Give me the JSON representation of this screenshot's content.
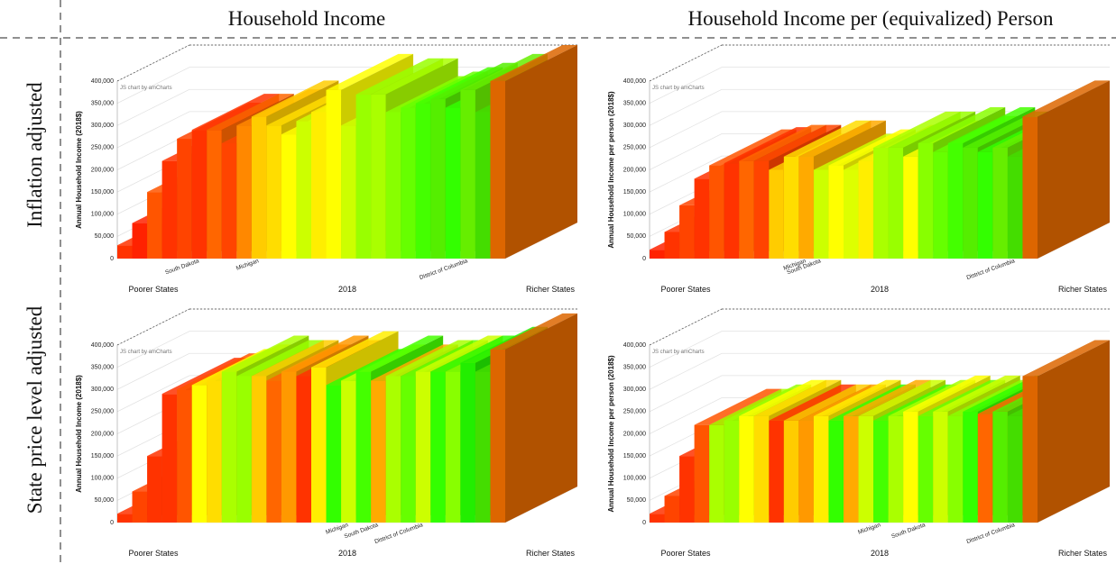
{
  "column_titles": [
    "Household Income",
    "Household Income per (equivalized) Person"
  ],
  "row_titles": [
    "Inflation adjusted",
    "State price level adjusted"
  ],
  "chart_data": [
    {
      "type": "bar3d",
      "credit": "JS chart by amCharts",
      "ylabel": "Annual Household Income (2018$)",
      "x_labels": [
        "Poorer States",
        "2018",
        "Richer States"
      ],
      "ylim": [
        0,
        400000
      ],
      "yticks": [
        0,
        {
          "value": 50000,
          "label": "50,000"
        },
        {
          "value": 100000,
          "label": "100,000"
        },
        {
          "value": 150000,
          "label": "150,000"
        },
        {
          "value": 200000,
          "label": "200,000"
        },
        {
          "value": 250000,
          "label": "250,000"
        },
        {
          "value": 300000,
          "label": "300,000"
        },
        {
          "value": 350000,
          "label": "350,000"
        },
        {
          "value": 400000,
          "label": "400,000"
        }
      ],
      "categories": [
        null,
        null,
        null,
        null,
        null,
        "South Dakota",
        null,
        null,
        null,
        "Michigan",
        null,
        null,
        null,
        null,
        null,
        null,
        null,
        null,
        null,
        null,
        null,
        null,
        null,
        "District of Columbia",
        null,
        null
      ],
      "values": [
        30000,
        80000,
        150000,
        220000,
        270000,
        290000,
        290000,
        260000,
        300000,
        320000,
        300000,
        280000,
        310000,
        330000,
        380000,
        300000,
        370000,
        370000,
        330000,
        340000,
        350000,
        360000,
        340000,
        380000,
        330000,
        400000
      ],
      "colors": [
        "#ff3300",
        "#ff2200",
        "#ff5500",
        "#ff3300",
        "#ff4400",
        "#ff3300",
        "#ff6600",
        "#ff4400",
        "#ff8800",
        "#ffcc00",
        "#ffdd00",
        "#ffff00",
        "#ccff00",
        "#ffee00",
        "#ffff00",
        "#ccff00",
        "#99ff00",
        "#aaff00",
        "#88ff00",
        "#66ff00",
        "#44ff00",
        "#55ee00",
        "#33ff00",
        "#66ee00",
        "#44dd00",
        "#dd6600"
      ]
    },
    {
      "type": "bar3d",
      "credit": "JS chart by amCharts",
      "ylabel": "Annual Household Income per person (2018$)",
      "x_labels": [
        "Poorer States",
        "2018",
        "Richer States"
      ],
      "ylim": [
        0,
        400000
      ],
      "yticks": [
        0,
        {
          "value": 50000,
          "label": "50,000"
        },
        {
          "value": 100000,
          "label": "100,000"
        },
        {
          "value": 150000,
          "label": "150,000"
        },
        {
          "value": 200000,
          "label": "200,000"
        },
        {
          "value": 250000,
          "label": "250,000"
        },
        {
          "value": 300000,
          "label": "300,000"
        },
        {
          "value": 350000,
          "label": "350,000"
        },
        {
          "value": 400000,
          "label": "400,000"
        }
      ],
      "categories": [
        null,
        null,
        null,
        null,
        null,
        null,
        null,
        null,
        null,
        null,
        "Michigan",
        "South Dakota",
        null,
        null,
        null,
        null,
        null,
        null,
        null,
        null,
        null,
        null,
        null,
        null,
        "District of Columbia",
        null
      ],
      "values": [
        20000,
        60000,
        120000,
        180000,
        210000,
        215000,
        220000,
        220000,
        200000,
        230000,
        230000,
        200000,
        210000,
        200000,
        220000,
        250000,
        250000,
        230000,
        260000,
        240000,
        260000,
        250000,
        240000,
        250000,
        230000,
        320000
      ],
      "colors": [
        "#ff2200",
        "#ff3300",
        "#ff4400",
        "#ff3300",
        "#ff5500",
        "#ff3300",
        "#ff6600",
        "#ff4400",
        "#ffcc00",
        "#ffdd00",
        "#ffaa00",
        "#ccff00",
        "#ffff00",
        "#ddff00",
        "#ffee00",
        "#aaff00",
        "#99ff00",
        "#ffff00",
        "#88ff00",
        "#66ff00",
        "#44ff00",
        "#55ee00",
        "#33ff00",
        "#66ee00",
        "#44dd00",
        "#dd6600"
      ]
    },
    {
      "type": "bar3d",
      "credit": "JS chart by amCharts",
      "ylabel": "Annual Household Income (2018$)",
      "x_labels": [
        "Poorer States",
        "2018",
        "Richer States"
      ],
      "ylim": [
        0,
        400000
      ],
      "yticks": [
        0,
        {
          "value": 50000,
          "label": "50,000"
        },
        {
          "value": 100000,
          "label": "100,000"
        },
        {
          "value": 150000,
          "label": "150,000"
        },
        {
          "value": 200000,
          "label": "200,000"
        },
        {
          "value": 250000,
          "label": "250,000"
        },
        {
          "value": 300000,
          "label": "300,000"
        },
        {
          "value": 350000,
          "label": "350,000"
        },
        {
          "value": 400000,
          "label": "400,000"
        }
      ],
      "categories": [
        null,
        null,
        null,
        null,
        null,
        null,
        null,
        null,
        null,
        null,
        null,
        null,
        null,
        null,
        null,
        "Michigan",
        null,
        "South Dakota",
        null,
        null,
        "District of Columbia",
        null,
        null,
        null,
        null,
        null
      ],
      "values": [
        20000,
        70000,
        150000,
        290000,
        300000,
        310000,
        320000,
        340000,
        330000,
        330000,
        320000,
        340000,
        330000,
        350000,
        310000,
        320000,
        340000,
        320000,
        330000,
        330000,
        340000,
        340000,
        340000,
        360000,
        340000,
        390000
      ],
      "colors": [
        "#ff3300",
        "#ff4400",
        "#ff3300",
        "#ff3300",
        "#ff5500",
        "#ffff00",
        "#ffdd00",
        "#aaff00",
        "#99ff00",
        "#ffcc00",
        "#ff6600",
        "#ff9900",
        "#ff3300",
        "#ffee00",
        "#33ff00",
        "#ccff00",
        "#44ff00",
        "#ffaa00",
        "#aaff00",
        "#66ff00",
        "#ccff00",
        "#33ff00",
        "#88ff00",
        "#22ee00",
        "#44dd00",
        "#dd6600"
      ]
    },
    {
      "type": "bar3d",
      "credit": "JS chart by amCharts",
      "ylabel": "Annual Household Income per person (2018$)",
      "x_labels": [
        "Poorer States",
        "2018",
        "Richer States"
      ],
      "ylim": [
        0,
        400000
      ],
      "yticks": [
        0,
        {
          "value": 50000,
          "label": "50,000"
        },
        {
          "value": 100000,
          "label": "100,000"
        },
        {
          "value": 150000,
          "label": "150,000"
        },
        {
          "value": 200000,
          "label": "200,000"
        },
        {
          "value": 250000,
          "label": "250,000"
        },
        {
          "value": 300000,
          "label": "300,000"
        },
        {
          "value": 350000,
          "label": "350,000"
        },
        {
          "value": 400000,
          "label": "400,000"
        }
      ],
      "categories": [
        null,
        null,
        null,
        null,
        null,
        null,
        null,
        null,
        null,
        null,
        null,
        null,
        null,
        null,
        null,
        "Michigan",
        null,
        null,
        "South Dakota",
        null,
        null,
        null,
        null,
        null,
        "District of Columbia",
        null
      ],
      "values": [
        20000,
        60000,
        150000,
        220000,
        220000,
        230000,
        240000,
        240000,
        230000,
        230000,
        230000,
        240000,
        230000,
        240000,
        240000,
        230000,
        240000,
        250000,
        240000,
        250000,
        240000,
        250000,
        245000,
        250000,
        240000,
        330000
      ],
      "colors": [
        "#ff3300",
        "#ff4400",
        "#ff3300",
        "#ff5500",
        "#aaff00",
        "#99ff00",
        "#ffff00",
        "#ffdd00",
        "#ff3300",
        "#ffcc00",
        "#ff9900",
        "#ffee00",
        "#33ff00",
        "#ffaa00",
        "#ccff00",
        "#44ff00",
        "#aaff00",
        "#ffff00",
        "#66ff00",
        "#ccff00",
        "#88ff00",
        "#33ff00",
        "#ff6600",
        "#55ee00",
        "#44dd00",
        "#dd6600"
      ]
    }
  ]
}
